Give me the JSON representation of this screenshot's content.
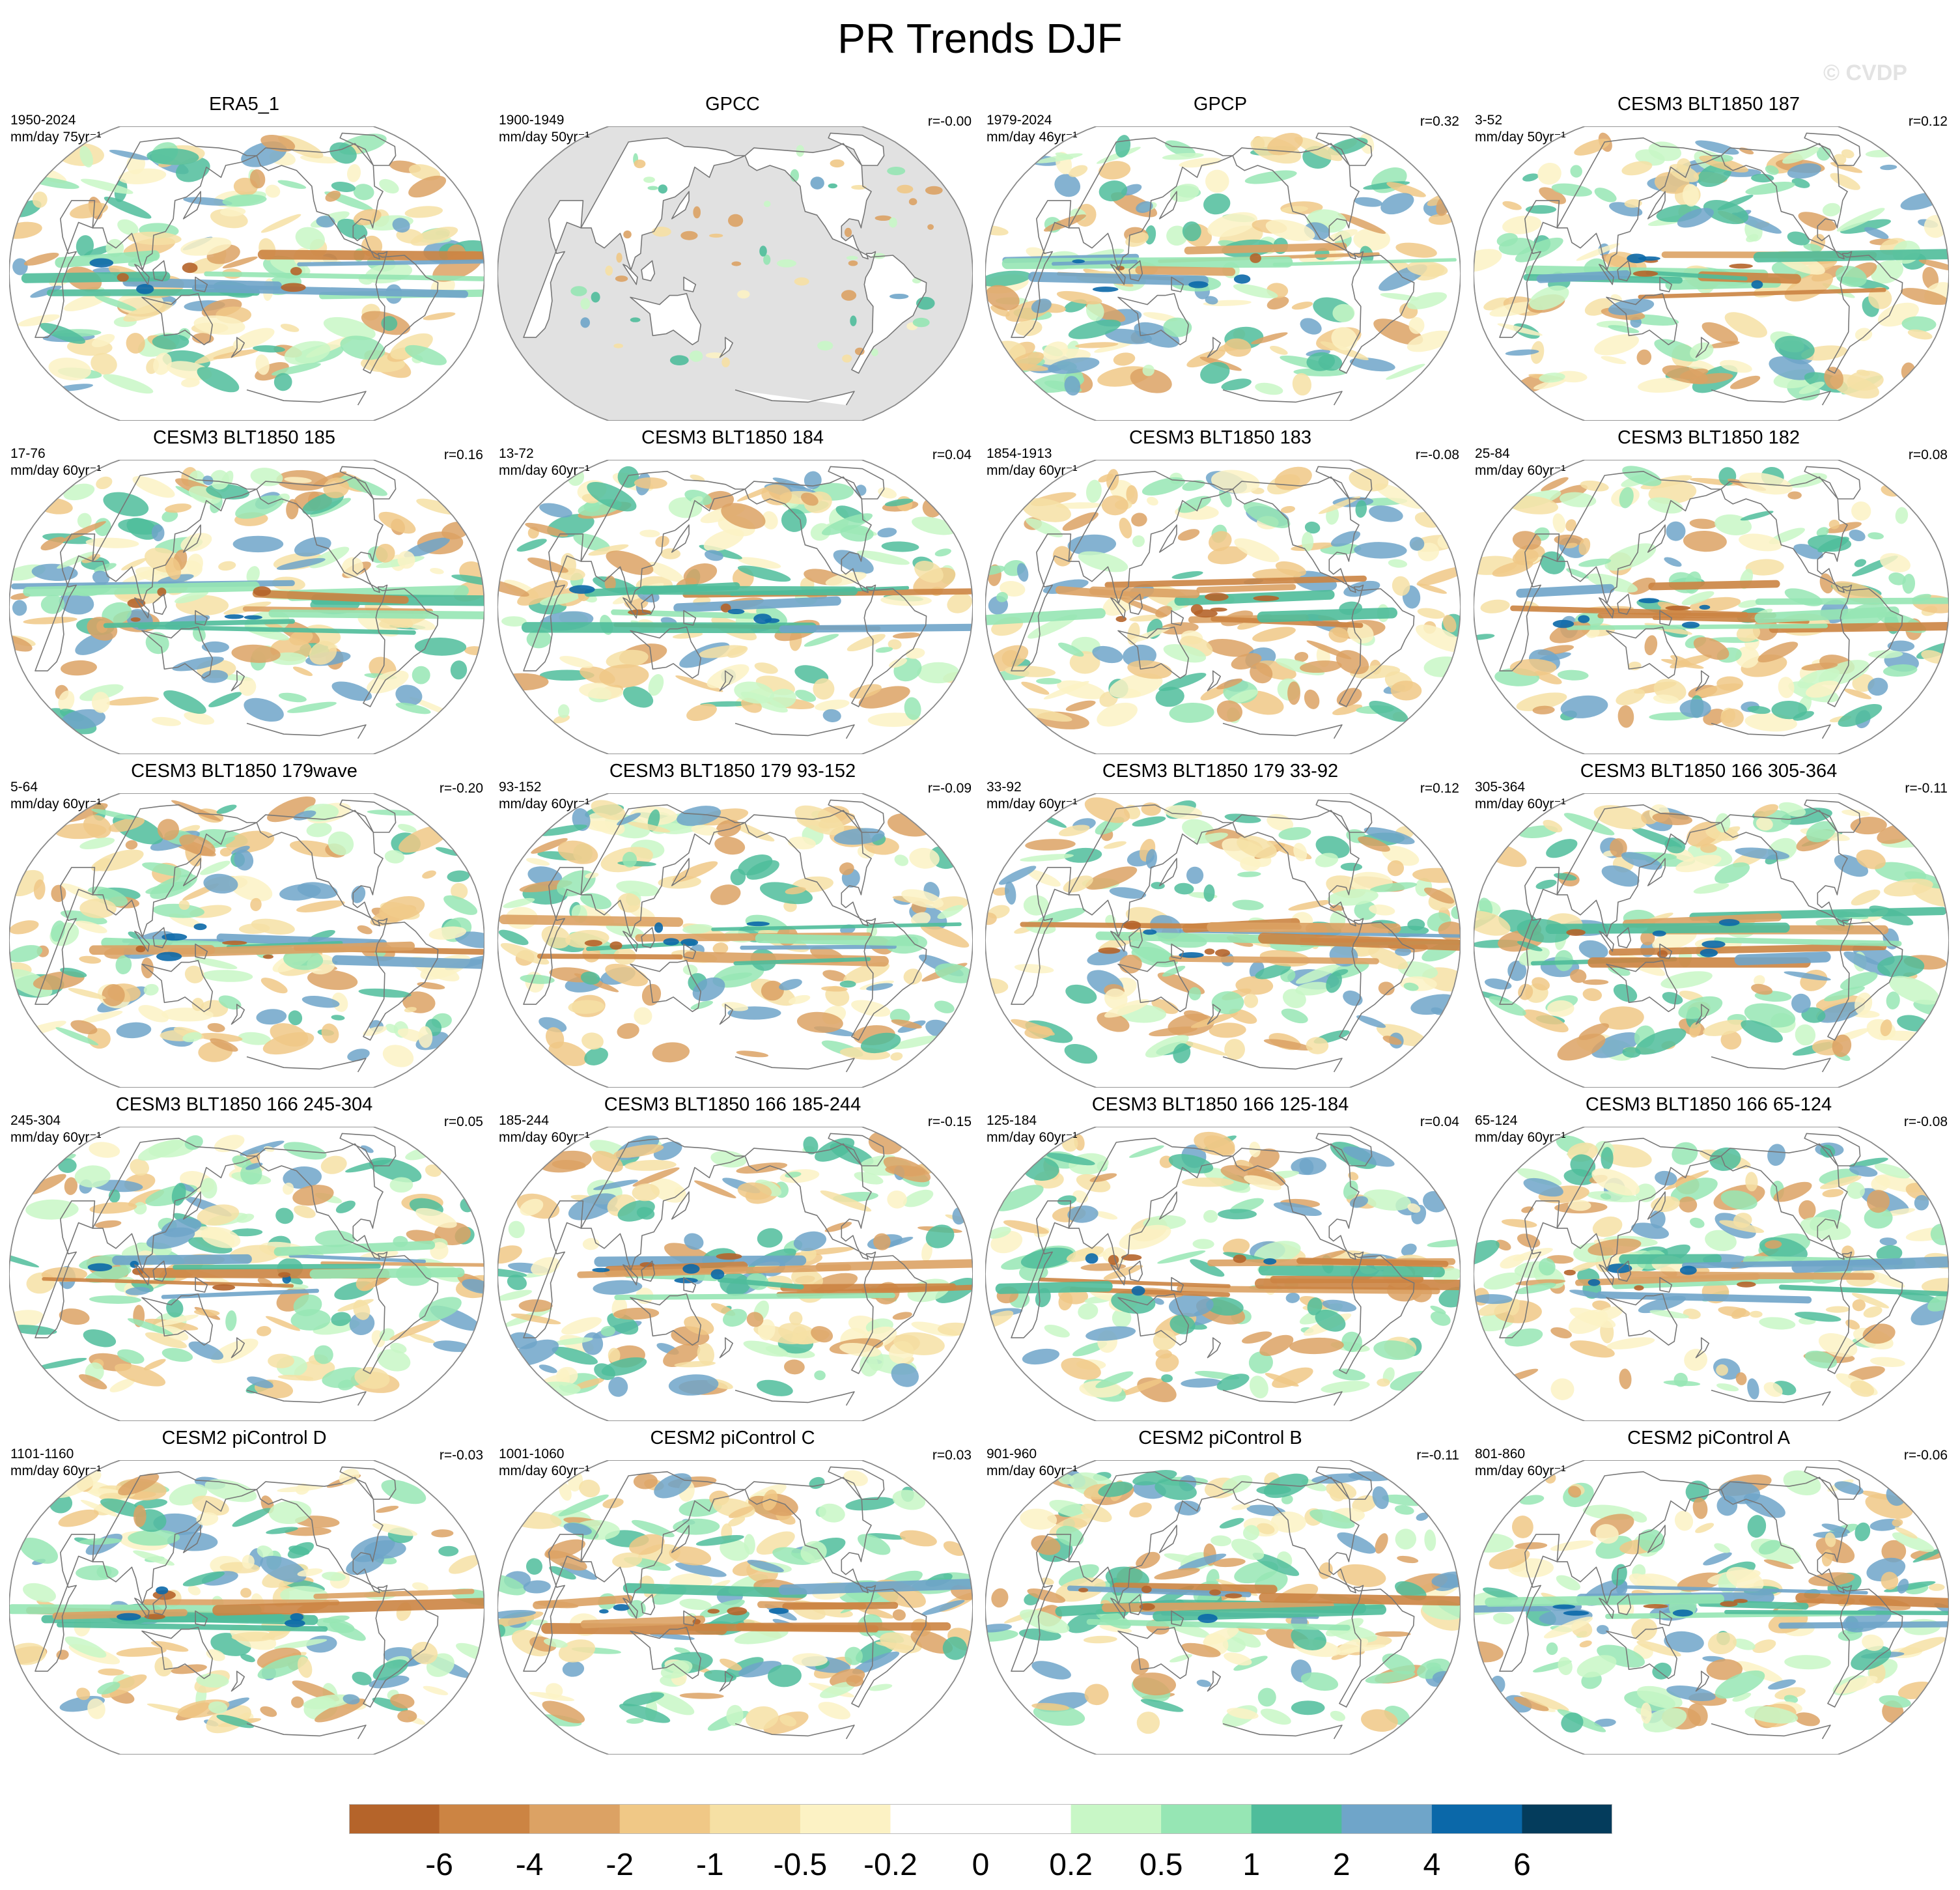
{
  "title": "PR Trends DJF",
  "copyright": "© CVDP",
  "colors": {
    "land_mask": "#e1e1e1",
    "ocean": "#ffffff",
    "coast": "#777777",
    "levels": [
      "#b5642a",
      "#cc8443",
      "#dca264",
      "#f0c886",
      "#f6e0a4",
      "#fcf2c4",
      "#ffffff",
      "#ffffff",
      "#c8f7c6",
      "#96e6b4",
      "#4fbd9b",
      "#6fa5c9",
      "#0b68a9",
      "#043c5c"
    ]
  },
  "chart_data": {
    "type": "heatmap",
    "projection": "robinson",
    "field": "precipitation trend",
    "colorbar": {
      "levels": [
        "-6",
        "-4",
        "-2",
        "-1",
        "-0.5",
        "-0.2",
        "0",
        "0.2",
        "0.5",
        "1",
        "2",
        "4",
        "6"
      ],
      "orientation": "horizontal",
      "placement": "bottom"
    },
    "panels": [
      {
        "title": "ERA5_1",
        "years": "1950-2024",
        "units": "mm/day 75yr⁻¹",
        "r": "",
        "masked": false,
        "seed": 11
      },
      {
        "title": "GPCC",
        "years": "1900-1949",
        "units": "mm/day 50yr⁻¹",
        "r": "r=-0.00",
        "masked": true,
        "seed": 23
      },
      {
        "title": "GPCP",
        "years": "1979-2024",
        "units": "mm/day 46yr⁻¹",
        "r": "r=0.32",
        "masked": false,
        "seed": 37
      },
      {
        "title": "CESM3 BLT1850 187",
        "years": "3-52",
        "units": "mm/day 50yr⁻¹",
        "r": "r=0.12",
        "masked": false,
        "seed": 41
      },
      {
        "title": "CESM3 BLT1850 185",
        "years": "17-76",
        "units": "mm/day 60yr⁻¹",
        "r": "r=0.16",
        "masked": false,
        "seed": 53
      },
      {
        "title": "CESM3 BLT1850 184",
        "years": "13-72",
        "units": "mm/day 60yr⁻¹",
        "r": "r=0.04",
        "masked": false,
        "seed": 67
      },
      {
        "title": "CESM3 BLT1850 183",
        "years": "1854-1913",
        "units": "mm/day 60yr⁻¹",
        "r": "r=-0.08",
        "masked": false,
        "seed": 71
      },
      {
        "title": "CESM3 BLT1850 182",
        "years": "25-84",
        "units": "mm/day 60yr⁻¹",
        "r": "r=0.08",
        "masked": false,
        "seed": 83
      },
      {
        "title": "CESM3 BLT1850 179wave",
        "years": "5-64",
        "units": "mm/day 60yr⁻¹",
        "r": "r=-0.20",
        "masked": false,
        "seed": 97
      },
      {
        "title": "CESM3 BLT1850 179 93-152",
        "years": "93-152",
        "units": "mm/day 60yr⁻¹",
        "r": "r=-0.09",
        "masked": false,
        "seed": 101
      },
      {
        "title": "CESM3 BLT1850 179 33-92",
        "years": "33-92",
        "units": "mm/day 60yr⁻¹",
        "r": "r=0.12",
        "masked": false,
        "seed": 113
      },
      {
        "title": "CESM3 BLT1850 166 305-364",
        "years": "305-364",
        "units": "mm/day 60yr⁻¹",
        "r": "r=-0.11",
        "masked": false,
        "seed": 127
      },
      {
        "title": "CESM3 BLT1850 166 245-304",
        "years": "245-304",
        "units": "mm/day 60yr⁻¹",
        "r": "r=0.05",
        "masked": false,
        "seed": 131
      },
      {
        "title": "CESM3 BLT1850 166 185-244",
        "years": "185-244",
        "units": "mm/day 60yr⁻¹",
        "r": "r=-0.15",
        "masked": false,
        "seed": 149
      },
      {
        "title": "CESM3 BLT1850 166 125-184",
        "years": "125-184",
        "units": "mm/day 60yr⁻¹",
        "r": "r=0.04",
        "masked": false,
        "seed": 157
      },
      {
        "title": "CESM3 BLT1850 166 65-124",
        "years": "65-124",
        "units": "mm/day 60yr⁻¹",
        "r": "r=-0.08",
        "masked": false,
        "seed": 163
      },
      {
        "title": "CESM2 piControl D",
        "years": "1101-1160",
        "units": "mm/day 60yr⁻¹",
        "r": "r=-0.03",
        "masked": false,
        "seed": 173
      },
      {
        "title": "CESM2 piControl C",
        "years": "1001-1060",
        "units": "mm/day 60yr⁻¹",
        "r": "r=0.03",
        "masked": false,
        "seed": 181
      },
      {
        "title": "CESM2 piControl B",
        "years": "901-960",
        "units": "mm/day 60yr⁻¹",
        "r": "r=-0.11",
        "masked": false,
        "seed": 191
      },
      {
        "title": "CESM2 piControl A",
        "years": "801-860",
        "units": "mm/day 60yr⁻¹",
        "r": "r=-0.06",
        "masked": false,
        "seed": 199
      }
    ]
  }
}
